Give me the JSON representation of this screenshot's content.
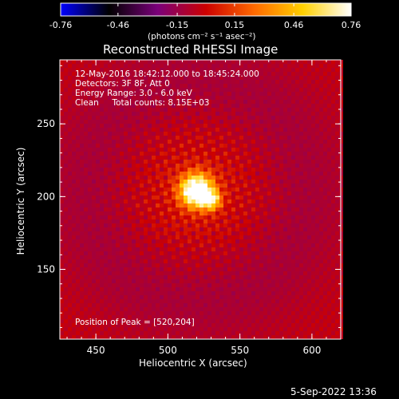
{
  "chart_data": {
    "type": "heatmap",
    "title": "Reconstructed RHESSI Image",
    "colorbar": {
      "ticks": [
        "-0.76",
        "-0.46",
        "-0.15",
        "0.15",
        "0.46",
        "0.76"
      ],
      "range": [
        -0.76,
        0.76
      ],
      "unit_label": "(photons cm⁻² s⁻¹ asec⁻²)",
      "colormap": [
        "#0000ff",
        "#000000",
        "#7a007a",
        "#cc0000",
        "#ff6a00",
        "#ffd000",
        "#ffffff"
      ]
    },
    "xlabel": "Heliocentric X (arcsec)",
    "ylabel": "Heliocentric Y (arcsec)",
    "x_range": [
      425,
      620
    ],
    "y_range": [
      102,
      294
    ],
    "x_ticks": [
      "450",
      "500",
      "550",
      "600"
    ],
    "y_ticks": [
      "150",
      "200",
      "250"
    ],
    "peak": {
      "x": 520,
      "y": 204,
      "value": 0.76
    },
    "annotations": [
      "12-May-2016 18:42:12.000 to 18:45:24.000",
      "Detectors: 3F 8F, Att 0",
      "Energy Range: 3.0 - 6.0 keV",
      "Clean     Total counts: 8.15E+03"
    ],
    "peak_label": "Position of Peak = [520,204]"
  },
  "timestamp": "5-Sep-2022 13:36"
}
